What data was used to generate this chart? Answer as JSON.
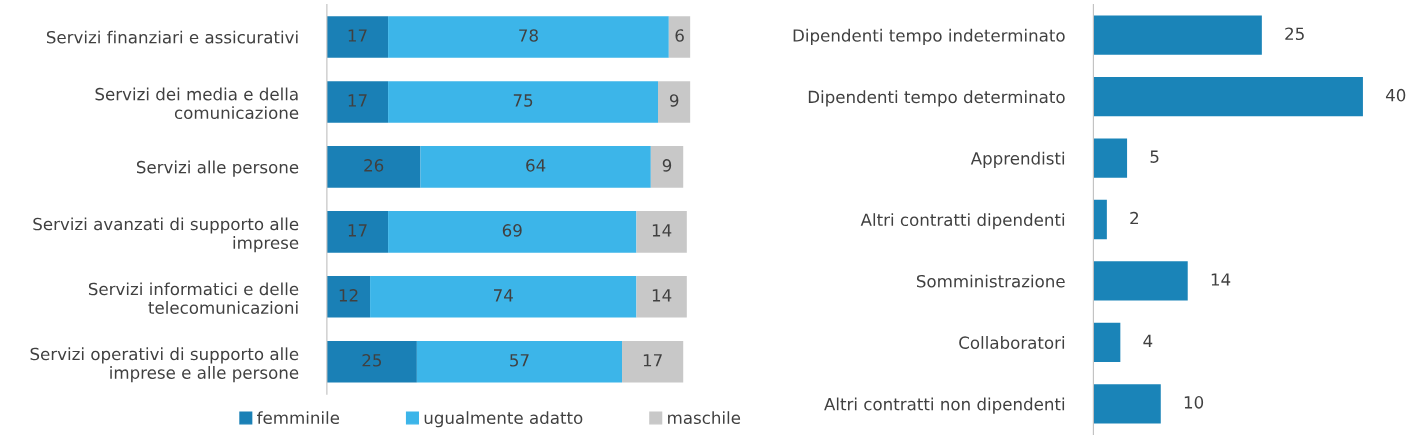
{
  "chart_data": [
    {
      "type": "bar",
      "orientation": "horizontal",
      "stacked": true,
      "data_labels": true,
      "legend": "bottom",
      "grid": false,
      "categories": [
        "Servizi finanziari e assicurativi",
        "Servizi dei media e della comunicazione",
        "Servizi alle persone",
        "Servizi avanzati di supporto alle imprese",
        "Servizi informatici e delle telecomunicazioni",
        "Servizi operativi di supporto alle imprese e alle persone"
      ],
      "series": [
        {
          "name": "femminile",
          "color": "#1a80b6",
          "values": [
            17,
            17,
            26,
            17,
            12,
            25
          ]
        },
        {
          "name": "ugualmente adatto",
          "color": "#3cb5e9",
          "values": [
            78,
            75,
            64,
            69,
            74,
            57
          ]
        },
        {
          "name": "maschile",
          "color": "#c8c8c8",
          "values": [
            6,
            9,
            9,
            14,
            14,
            17
          ]
        }
      ]
    },
    {
      "type": "bar",
      "orientation": "horizontal",
      "data_labels": true,
      "grid": false,
      "color": "#1a84b8",
      "categories": [
        "Dipendenti tempo indeterminato",
        "Dipendenti tempo determinato",
        "Apprendisti",
        "Altri contratti dipendenti",
        "Somministrazione",
        "Collaboratori",
        "Altri contratti non dipendenti"
      ],
      "values": [
        25,
        40,
        5,
        2,
        14,
        4,
        10
      ]
    }
  ]
}
